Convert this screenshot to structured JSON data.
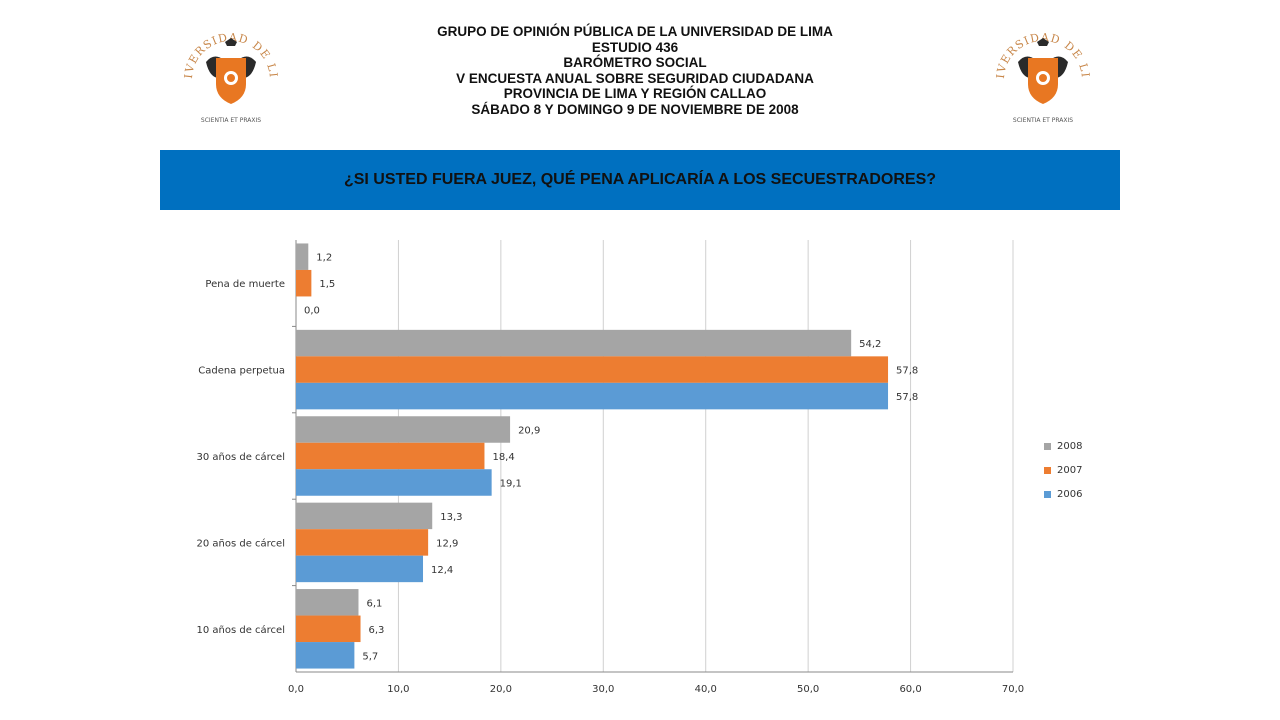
{
  "header": {
    "lines": [
      "GRUPO DE OPINIÓN PÚBLICA DE LA UNIVERSIDAD DE LIMA",
      "ESTUDIO 436",
      "BARÓMETRO SOCIAL",
      "V ENCUESTA ANUAL SOBRE SEGURIDAD CIUDADANA",
      "PROVINCIA DE LIMA Y REGIÓN CALLAO",
      "SÁBADO 8 Y DOMINGO 9 DE NOVIEMBRE DE 2008"
    ]
  },
  "logo": {
    "arc_text": "UNIVERSIDAD DE LIMA",
    "motto": "SCIENTIA ET PRAXIS",
    "colors": {
      "text": "#c8874a",
      "shield": "#e87722",
      "dark": "#2a2a2a"
    }
  },
  "banner": {
    "question": "¿SI USTED FUERA JUEZ, QUÉ PENA APLICARÍA A LOS SECUESTRADORES?",
    "color": "#0070c0"
  },
  "chart_data": {
    "type": "bar",
    "orientation": "horizontal",
    "categories": [
      "Pena de muerte",
      "Cadena perpetua",
      "30 años de cárcel",
      "20 años de cárcel",
      "10 años de cárcel"
    ],
    "series": [
      {
        "name": "2008",
        "color": "#a5a5a5",
        "values": [
          1.2,
          54.2,
          20.9,
          13.3,
          6.1
        ],
        "labels": [
          "1,2",
          "54,2",
          "20,9",
          "13,3",
          "6,1"
        ]
      },
      {
        "name": "2007",
        "color": "#ed7d31",
        "values": [
          1.5,
          57.8,
          18.4,
          12.9,
          6.3
        ],
        "labels": [
          "1,5",
          "57,8",
          "18,4",
          "12,9",
          "6,3"
        ]
      },
      {
        "name": "2006",
        "color": "#5b9bd5",
        "values": [
          0.0,
          57.8,
          19.1,
          12.4,
          5.7
        ],
        "labels": [
          "0,0",
          "57,8",
          "19,1",
          "12,4",
          "5,7"
        ]
      }
    ],
    "xlim": [
      0,
      70
    ],
    "xticks": [
      0,
      10,
      20,
      30,
      40,
      50,
      60,
      70
    ],
    "xtick_labels": [
      "0,0",
      "10,0",
      "20,0",
      "30,0",
      "40,0",
      "50,0",
      "60,0",
      "70,0"
    ],
    "grid": true,
    "legend": "right",
    "legend_order": [
      "2008",
      "2007",
      "2006"
    ]
  }
}
